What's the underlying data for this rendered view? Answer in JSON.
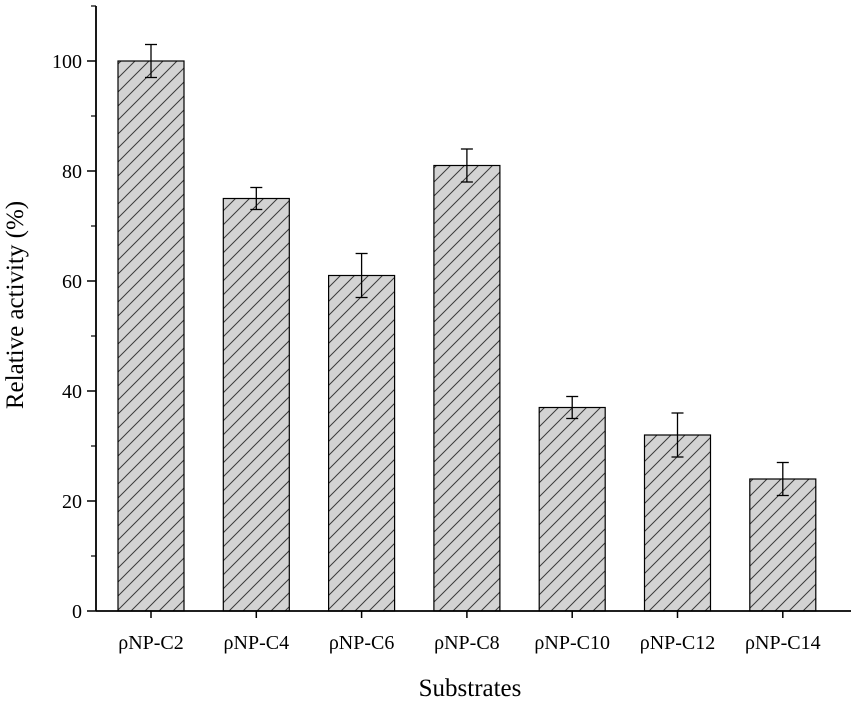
{
  "chart_data": {
    "type": "bar",
    "xlabel": "Substrates",
    "ylabel": "Relative activity (%)",
    "ylim": [
      0,
      110
    ],
    "yticks": [
      0,
      20,
      40,
      60,
      80,
      100
    ],
    "categories": [
      "ρNP-C2",
      "ρNP-C4",
      "ρNP-C6",
      "ρNP-C8",
      "ρNP-C10",
      "ρNP-C12",
      "ρNP-C14"
    ],
    "values": [
      100,
      75,
      61,
      81,
      37,
      32,
      24
    ],
    "errors": [
      3,
      2,
      4,
      3,
      2,
      4,
      3
    ],
    "bar_fill": "#d3d3d3",
    "bar_pattern": "diagonal-hatch",
    "grid": false,
    "legend": "none"
  }
}
